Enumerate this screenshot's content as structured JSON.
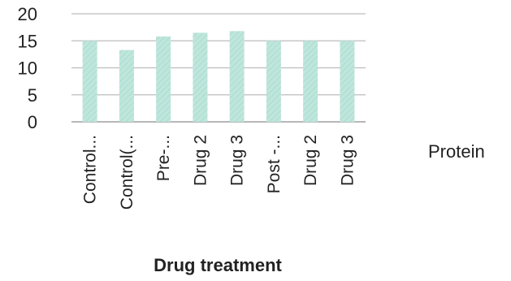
{
  "chart_data": {
    "type": "bar",
    "title": "",
    "xlabel": "Drug treatment",
    "ylabel": "",
    "ylim": [
      0,
      20
    ],
    "yticks": [
      0,
      5,
      10,
      15,
      20
    ],
    "grid": true,
    "legend_position": "right",
    "categories": [
      "Control...",
      "Control(...",
      "Pre-...",
      "Drug 2",
      "Drug 3",
      "Post -...",
      "Drug 2",
      "Drug 3"
    ],
    "series": [
      {
        "name": "Protein",
        "color": "#bfe6dc",
        "values": [
          15.0,
          13.3,
          15.8,
          16.5,
          16.8,
          15.0,
          15.0,
          15.0
        ]
      }
    ]
  }
}
